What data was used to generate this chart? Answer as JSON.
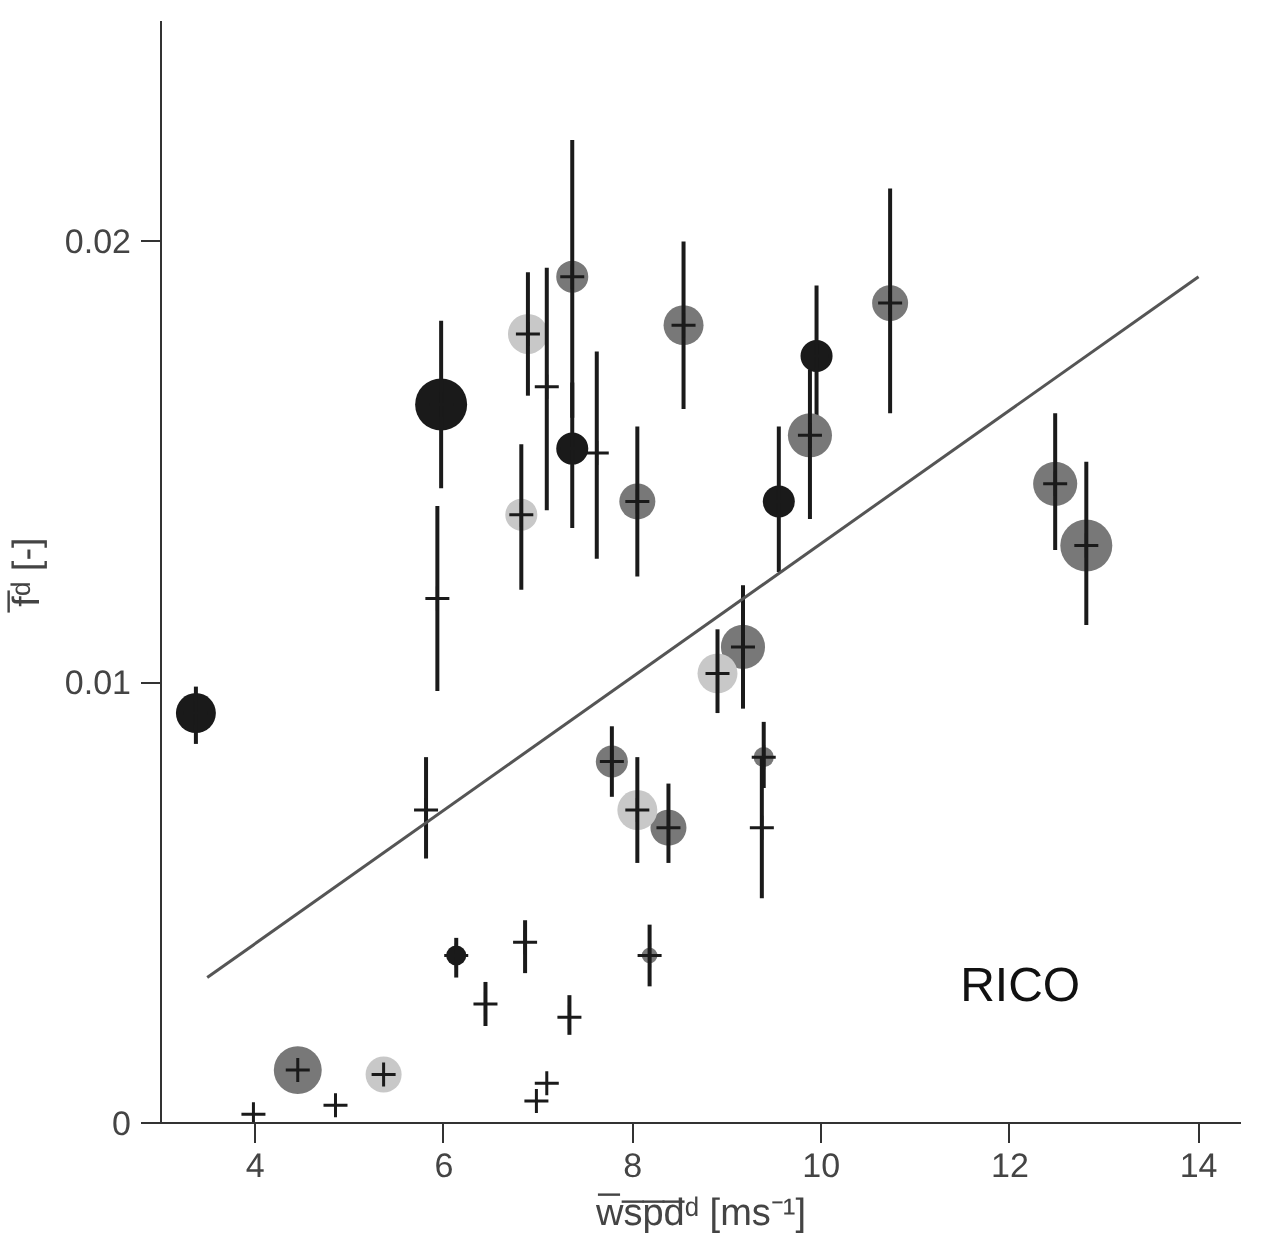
{
  "chart_data": {
    "type": "bubble",
    "xlabel": "w̅s̅p̅d̅ᵈ [ms⁻¹]",
    "ylabel": "f̅ᵈ [-]",
    "xlim": [
      3,
      14.45
    ],
    "ylim": [
      0,
      0.025
    ],
    "xticks": [
      4,
      6,
      8,
      10,
      12,
      14
    ],
    "yticks": [
      0,
      0.01,
      0.02
    ],
    "grid": false,
    "annotations": [
      "RICO"
    ],
    "series": [
      {
        "color": "#1a1a1a",
        "x": [
          3.37,
          5.97,
          6.13,
          7.36,
          9.55,
          9.95
        ],
        "values": [
          0.0093,
          0.0163,
          0.0038,
          0.0153,
          0.0141,
          0.0174
        ],
        "sizes": [
          0.59,
          1,
          0.15,
          0.38,
          0.38,
          0.38
        ],
        "errors": [
          [
            0.0086,
            0.0099
          ],
          [
            0.0144,
            0.0182
          ],
          [
            0.0033,
            0.0042
          ],
          [
            0.0135,
            0.0168
          ],
          [
            0.0125,
            0.0158
          ],
          [
            0.0158,
            0.019
          ]
        ]
      },
      {
        "color": "#787878",
        "x": [
          4.45,
          7.36,
          7.78,
          8.05,
          8.18,
          8.38,
          8.54,
          9.17,
          9.39,
          9.88,
          10.73,
          12.48,
          12.81
        ],
        "values": [
          0.0012,
          0.0192,
          0.0082,
          0.0141,
          0.0038,
          0.0067,
          0.0181,
          0.0108,
          0.0083,
          0.0156,
          0.0186,
          0.0145,
          0.0131
        ],
        "sizes": [
          0.85,
          0.38,
          0.38,
          0.48,
          0.09,
          0.48,
          0.59,
          0.72,
          0.15,
          0.72,
          0.48,
          0.72,
          1
        ],
        "errors": [
          null,
          [
            0.016,
            0.0223
          ],
          [
            0.0074,
            0.009
          ],
          [
            0.0124,
            0.0158
          ],
          [
            0.0031,
            0.0045
          ],
          [
            0.0059,
            0.0077
          ],
          [
            0.0162,
            0.02
          ],
          [
            0.0094,
            0.0122
          ],
          [
            0.0076,
            0.0091
          ],
          [
            0.0137,
            0.0171
          ],
          [
            0.0161,
            0.0212
          ],
          [
            0.013,
            0.0161
          ],
          [
            0.0113,
            0.015
          ]
        ]
      },
      {
        "color": "#c8c8c8",
        "x": [
          5.36,
          6.82,
          6.89,
          8.05,
          8.9
        ],
        "values": [
          0.0011,
          0.0138,
          0.0179,
          0.0071,
          0.0102
        ],
        "sizes": [
          0.48,
          0.38,
          0.59,
          0.59,
          0.59
        ],
        "errors": [
          null,
          [
            0.0121,
            0.0154
          ],
          [
            0.0165,
            0.0193
          ],
          [
            0.0059,
            0.0083
          ],
          [
            0.0093,
            0.0112
          ]
        ]
      },
      {
        "type": "scatter",
        "marker": "cross",
        "color": "#1a1a1a",
        "x": [
          3.98,
          4.85,
          5.81,
          5.93,
          6.44,
          6.86,
          6.98,
          7.09,
          7.09,
          7.33,
          7.62,
          9.37
        ],
        "values": [
          0.0002,
          0.0004,
          0.0071,
          0.0119,
          0.0027,
          0.0041,
          0.0005,
          0.0009,
          0.0167,
          0.0024,
          0.0152,
          0.0067
        ],
        "errors": [
          null,
          null,
          [
            0.006,
            0.0083
          ],
          [
            0.0098,
            0.014
          ],
          [
            0.0022,
            0.0032
          ],
          [
            0.0034,
            0.0046
          ],
          null,
          null,
          [
            0.0139,
            0.0194
          ],
          [
            0.002,
            0.0029
          ],
          [
            0.0128,
            0.0175
          ],
          [
            0.0051,
            0.0083
          ]
        ]
      },
      {
        "type": "line",
        "color": "#555555",
        "x": [
          3.49,
          14.0
        ],
        "values": [
          0.0033,
          0.0192
        ]
      }
    ]
  }
}
